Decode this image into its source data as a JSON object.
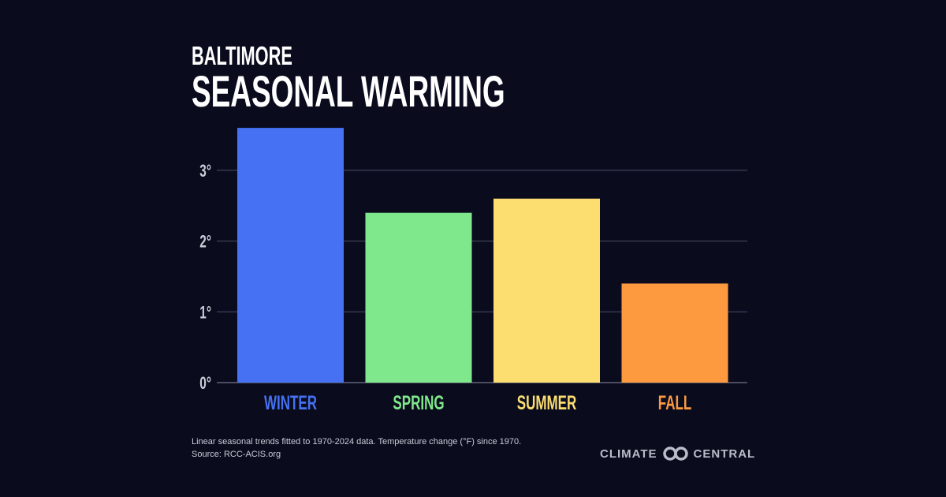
{
  "subtitle": "BALTIMORE",
  "title": "SEASONAL WARMING",
  "chart_data": {
    "type": "bar",
    "categories": [
      "WINTER",
      "SPRING",
      "SUMMER",
      "FALL"
    ],
    "values": [
      3.6,
      2.4,
      2.6,
      1.4
    ],
    "colors": [
      "#4571f2",
      "#80e88c",
      "#fbdd70",
      "#fd9a40"
    ],
    "yticks": [
      "0°",
      "1°",
      "2°",
      "3°"
    ],
    "ylim": [
      0,
      3.6
    ],
    "grid": true,
    "xlabel": "",
    "ylabel": ""
  },
  "footnote": "Linear seasonal trends fitted to 1970-2024 data. Temperature change (°F) since 1970.",
  "source": "Source: RCC-ACIS.org",
  "logo": {
    "left": "CLIMATE",
    "right": "CENTRAL"
  }
}
